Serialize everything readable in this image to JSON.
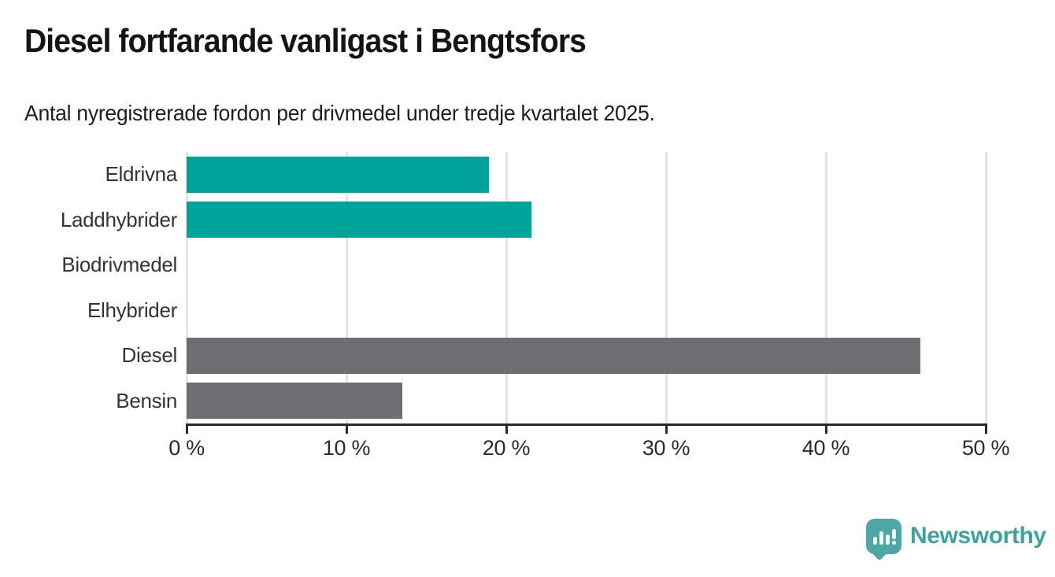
{
  "chart_data": {
    "type": "bar",
    "orientation": "horizontal",
    "title": "Diesel fortfarande vanligast i Bengtsfors",
    "subtitle": "Antal nyregistrerade fordon per drivmedel under tredje kvartalet 2025.",
    "categories": [
      "Eldrivna",
      "Laddhybrider",
      "Biodrivmedel",
      "Elhybrider",
      "Diesel",
      "Bensin"
    ],
    "values": [
      18.9,
      21.6,
      0,
      0,
      45.9,
      13.5
    ],
    "unit": "%",
    "bar_colors": [
      "#00a39a",
      "#00a39a",
      "#00a39a",
      "#00a39a",
      "#6d6d72",
      "#6d6d72"
    ],
    "xlim": [
      0,
      50
    ],
    "x_ticks": [
      0,
      10,
      20,
      30,
      40,
      50
    ],
    "x_tick_labels": [
      "0 %",
      "10 %",
      "20 %",
      "30 %",
      "40 %",
      "50 %"
    ],
    "grid": "vertical",
    "legend": "none"
  },
  "colors": {
    "accent_teal": "#00a39a",
    "neutral_gray": "#6d6d72",
    "gridline": "#e4e4e4",
    "axis": "#2b2b2b",
    "text": "#1d1d1d",
    "label_text": "#333333"
  },
  "footer": {
    "brand": "Newsworthy",
    "brand_color": "#3fa2a2",
    "logo_color": "#4ea7a2",
    "logo_icon": "bar-chart-speech-bubble-icon"
  }
}
